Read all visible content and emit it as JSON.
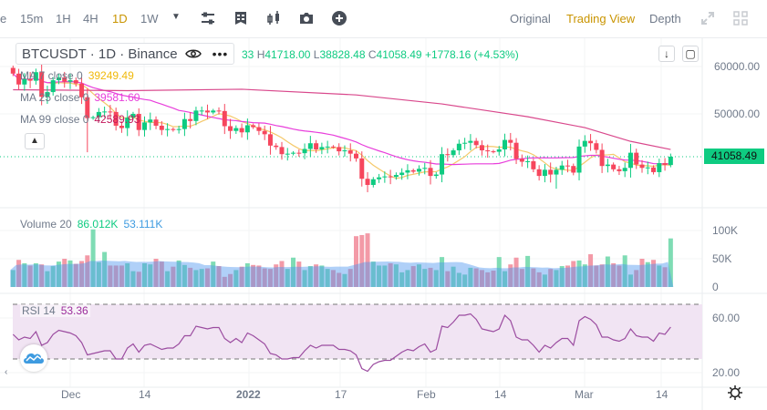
{
  "toolbar": {
    "timeframes": [
      {
        "label": "15m",
        "active": false
      },
      {
        "label": "1H",
        "active": false
      },
      {
        "label": "4H",
        "active": false
      },
      {
        "label": "1D",
        "active": true
      },
      {
        "label": "1W",
        "active": false
      }
    ],
    "views": {
      "original": "Original",
      "trading_view": "Trading View",
      "depth": "Depth"
    }
  },
  "legend": {
    "symbol": "BTCUSDT · 1D · Binance"
  },
  "ohlc": {
    "o_partial": "33",
    "h_label": "H",
    "h": "41718.00",
    "l_label": "L",
    "l": "38828.48",
    "c_label": "C",
    "c": "41058.49",
    "change": "+1778.16 (+4.53%)"
  },
  "indicators": {
    "ma7": {
      "label": "MA 7 close 0",
      "value": "39249.49",
      "color": "#f0b90b"
    },
    "ma25": {
      "label": "MA 25 close 0",
      "value": "39581.60",
      "color": "#e83edb"
    },
    "ma99": {
      "label": "MA 99 close 0",
      "value": "42589.93",
      "color": "#d9488c"
    },
    "volume": {
      "label": "Volume 20",
      "value": "86.012K",
      "ma_value": "53.111K"
    },
    "rsi": {
      "label": "RSI 14",
      "value": "53.36"
    }
  },
  "price_axis": {
    "ticks": [
      "60000.00",
      "50000.00"
    ],
    "last_price": "41058.49"
  },
  "volume_axis": {
    "ticks": [
      "100K",
      "50K",
      "0"
    ]
  },
  "rsi_axis": {
    "ticks": [
      "60.00",
      "20.00"
    ]
  },
  "time_axis": {
    "labels": [
      "Dec",
      "14",
      "2022",
      "17",
      "Feb",
      "14",
      "Mar",
      "14"
    ]
  },
  "colors": {
    "up": "#0ecb81",
    "down": "#f6465d",
    "accent": "#c99400"
  },
  "chart_data": {
    "type": "candlestick",
    "start_date": "2021-11-21",
    "close": [
      58600,
      56300,
      57500,
      57100,
      58900,
      53700,
      54700,
      57200,
      57800,
      56900,
      57200,
      56500,
      53600,
      49200,
      49400,
      50500,
      50600,
      50500,
      47600,
      47100,
      49300,
      50100,
      46700,
      48300,
      48900,
      47600,
      46700,
      46900,
      46700,
      46900,
      49000,
      48600,
      50800,
      50800,
      50400,
      50800,
      50700,
      47500,
      46500,
      47100,
      46200,
      47700,
      47300,
      46500,
      45800,
      43400,
      43100,
      41600,
      41700,
      41900,
      41800,
      42700,
      43900,
      42600,
      43100,
      43200,
      43100,
      42200,
      42400,
      41700,
      40700,
      36400,
      35100,
      36300,
      36700,
      36900,
      36800,
      37200,
      37700,
      38200,
      37900,
      38500,
      38700,
      37000,
      37300,
      41600,
      41400,
      42400,
      43800,
      44000,
      44400,
      43500,
      42400,
      42200,
      42100,
      42600,
      44600,
      44000,
      40600,
      40000,
      40100,
      38400,
      37000,
      38300,
      37300,
      38300,
      39200,
      39100,
      37700,
      43200,
      44400,
      43900,
      42500,
      39100,
      39400,
      38400,
      38000,
      38700,
      41900,
      39400,
      38700,
      38800,
      37800,
      39700,
      39300,
      41058.49
    ],
    "volume_k": [
      30,
      48,
      42,
      38,
      42,
      40,
      28,
      37,
      45,
      50,
      47,
      41,
      46,
      56,
      102,
      44,
      62,
      38,
      38,
      38,
      42,
      28,
      27,
      42,
      40,
      50,
      45,
      28,
      36,
      47,
      39,
      34,
      30,
      32,
      33,
      45,
      37,
      18,
      23,
      30,
      36,
      42,
      39,
      38,
      33,
      32,
      40,
      46,
      32,
      52,
      45,
      30,
      37,
      40,
      38,
      32,
      30,
      25,
      23,
      32,
      90,
      92,
      95,
      45,
      38,
      38,
      42,
      40,
      26,
      30,
      37,
      40,
      32,
      34,
      30,
      53,
      28,
      36,
      25,
      22,
      34,
      33,
      30,
      26,
      29,
      53,
      28,
      40,
      52,
      32,
      55,
      33,
      26,
      22,
      32,
      30,
      37,
      38,
      46,
      47,
      40,
      58,
      38,
      40,
      54,
      42,
      38,
      56,
      22,
      30,
      50,
      44,
      48,
      38,
      35,
      86.012
    ],
    "rsi": [
      48,
      44,
      46,
      45,
      50,
      40,
      42,
      48,
      51,
      50,
      49,
      47,
      42,
      33,
      34,
      35,
      36,
      36,
      30,
      30,
      38,
      41,
      35,
      40,
      41,
      39,
      37,
      38,
      38,
      41,
      47,
      47,
      54,
      53,
      52,
      53,
      53,
      45,
      42,
      45,
      42,
      49,
      47,
      44,
      41,
      34,
      33,
      30,
      30,
      31,
      31,
      36,
      40,
      38,
      40,
      40,
      40,
      37,
      37,
      36,
      33,
      23,
      21,
      26,
      28,
      29,
      29,
      32,
      35,
      37,
      36,
      39,
      41,
      35,
      37,
      54,
      53,
      57,
      62,
      62,
      63,
      59,
      52,
      51,
      50,
      52,
      62,
      58,
      46,
      44,
      44,
      40,
      35,
      40,
      38,
      42,
      45,
      45,
      40,
      58,
      61,
      59,
      55,
      46,
      46,
      44,
      43,
      45,
      52,
      47,
      46,
      46,
      43,
      49,
      48,
      53.36
    ],
    "ma99_points": [
      [
        0,
        55200
      ],
      [
        20,
        55000
      ],
      [
        40,
        55300
      ],
      [
        60,
        54100
      ],
      [
        75,
        52200
      ],
      [
        90,
        49500
      ],
      [
        100,
        47200
      ],
      [
        108,
        44300
      ],
      [
        115,
        42589.93
      ]
    ],
    "ylim_price": [
      33000,
      63000
    ],
    "ylim_volume": [
      0,
      120
    ],
    "ylim_rsi": [
      15,
      80
    ],
    "rsi_bands": [
      70,
      30
    ]
  }
}
